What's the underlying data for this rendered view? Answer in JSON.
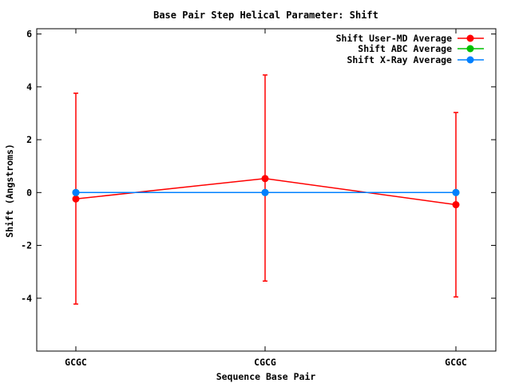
{
  "chart_data": {
    "type": "line",
    "title": "Base Pair Step Helical Parameter: Shift",
    "xlabel": "Sequence Base Pair",
    "ylabel": "Shift (Angstroms)",
    "categories": [
      "GCGC",
      "CGCG",
      "GCGC"
    ],
    "ylim": [
      -6,
      6.2
    ],
    "yticks": [
      6,
      4,
      2,
      0,
      -2,
      -4
    ],
    "legend_position": "top-right",
    "grid": false,
    "series": [
      {
        "name": "Shift User-MD Average",
        "color": "#ff0000",
        "values": [
          -0.24,
          0.53,
          -0.46
        ],
        "error_low": [
          -4.22,
          -3.35,
          -3.95
        ],
        "error_high": [
          3.76,
          4.45,
          3.03
        ]
      },
      {
        "name": "Shift ABC Average",
        "color": "#00c000",
        "values": [
          0.0,
          0.0,
          0.0
        ]
      },
      {
        "name": "Shift X-Ray Average",
        "color": "#0080ff",
        "values": [
          0.0,
          0.0,
          0.0
        ]
      }
    ]
  }
}
